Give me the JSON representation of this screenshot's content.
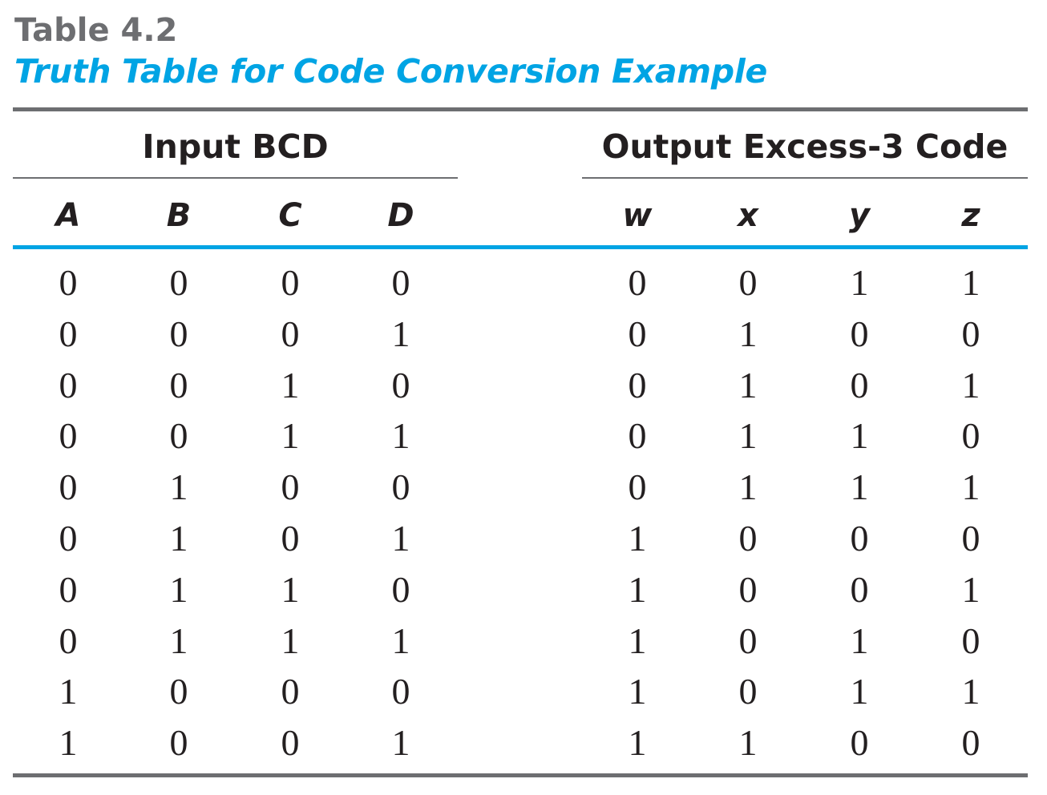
{
  "table": {
    "label": "Table 4.2",
    "caption": "Truth Table for Code Conversion Example",
    "groups": {
      "input": "Input BCD",
      "output": "Output Excess-3 Code"
    },
    "columns": [
      "A",
      "B",
      "C",
      "D",
      "w",
      "x",
      "y",
      "z"
    ],
    "rows": [
      [
        "0",
        "0",
        "0",
        "0",
        "0",
        "0",
        "1",
        "1"
      ],
      [
        "0",
        "0",
        "0",
        "1",
        "0",
        "1",
        "0",
        "0"
      ],
      [
        "0",
        "0",
        "1",
        "0",
        "0",
        "1",
        "0",
        "1"
      ],
      [
        "0",
        "0",
        "1",
        "1",
        "0",
        "1",
        "1",
        "0"
      ],
      [
        "0",
        "1",
        "0",
        "0",
        "0",
        "1",
        "1",
        "1"
      ],
      [
        "0",
        "1",
        "0",
        "1",
        "1",
        "0",
        "0",
        "0"
      ],
      [
        "0",
        "1",
        "1",
        "0",
        "1",
        "0",
        "0",
        "1"
      ],
      [
        "0",
        "1",
        "1",
        "1",
        "1",
        "0",
        "1",
        "0"
      ],
      [
        "1",
        "0",
        "0",
        "0",
        "1",
        "0",
        "1",
        "1"
      ],
      [
        "1",
        "0",
        "0",
        "1",
        "1",
        "1",
        "0",
        "0"
      ]
    ],
    "colors": {
      "label": "#6d6e71",
      "caption": "#00a4e4",
      "text": "#231f20",
      "rule": "#6d6e71",
      "header_rule": "#00a4e4"
    }
  }
}
